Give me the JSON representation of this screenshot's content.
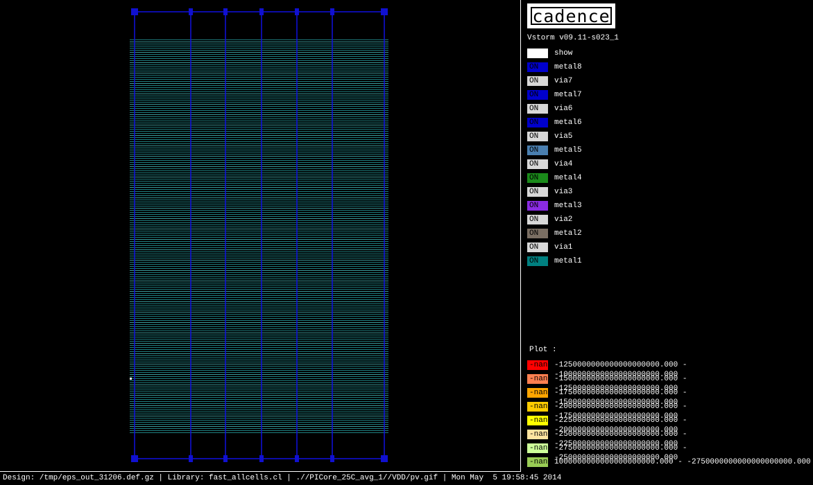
{
  "logo": "cadence",
  "version": "Vstorm v09.11-s023_1",
  "layers": [
    {
      "name": "show",
      "color": "#ffffff"
    },
    {
      "name": "metal8",
      "state": "ON",
      "color": "#0000cc"
    },
    {
      "name": "via7",
      "state": "ON",
      "color": "#d8d8d8"
    },
    {
      "name": "metal7",
      "state": "ON",
      "color": "#0000cc"
    },
    {
      "name": "via6",
      "state": "ON",
      "color": "#d8d8d8"
    },
    {
      "name": "metal6",
      "state": "ON",
      "color": "#0000cc"
    },
    {
      "name": "via5",
      "state": "ON",
      "color": "#d8d8d8"
    },
    {
      "name": "metal5",
      "state": "ON",
      "color": "#4a7fb0"
    },
    {
      "name": "via4",
      "state": "ON",
      "color": "#d8d8d8"
    },
    {
      "name": "metal4",
      "state": "ON",
      "color": "#1a8a1a"
    },
    {
      "name": "via3",
      "state": "ON",
      "color": "#d8d8d8"
    },
    {
      "name": "metal3",
      "state": "ON",
      "color": "#8a2be2"
    },
    {
      "name": "via2",
      "state": "ON",
      "color": "#d8d8d8"
    },
    {
      "name": "metal2",
      "state": "ON",
      "color": "#7a6e62"
    },
    {
      "name": "via1",
      "state": "ON",
      "color": "#d8d8d8"
    },
    {
      "name": "metal1",
      "state": "ON",
      "color": "#008080"
    }
  ],
  "plot": {
    "title": "Plot :",
    "ranges": [
      {
        "swatch": "-nan",
        "color": "#ff0000",
        "range": "-1250000000000000000000.000 - -1000000000000000000000.000"
      },
      {
        "swatch": "-nan",
        "color": "#ff7f50",
        "range": "-1500000000000000000000.000 - -1250000000000000000000.000"
      },
      {
        "swatch": "-nan",
        "color": "#ffa500",
        "range": "-1750000000000000000000.000 - -1500000000000000000000.000"
      },
      {
        "swatch": "-nan",
        "color": "#ffcc00",
        "range": "-2000000000000000000000.000 - -1750000000000000000000.000"
      },
      {
        "swatch": "-nan",
        "color": "#ffff00",
        "range": "-2250000000000000000000.000 - -2000000000000000000000.000"
      },
      {
        "swatch": "-nan",
        "color": "#ffe4a0",
        "range": "-2500000000000000000000.000 - -2250000000000000000000.000"
      },
      {
        "swatch": "-nan",
        "color": "#ccff99",
        "range": "-2750000000000000000000.000 - -2500000000000000000000.000"
      },
      {
        "swatch": "-nan",
        "color": "#99cc55",
        "range": "1000000000000000000000.000 - -2750000000000000000000.000"
      }
    ]
  },
  "status": "Design: /tmp/eps_out_31206.def.gz | Library: fast_allcells.cl | .//PICore_25C_avg_1//VDD/pv.gif | Mon May  5 19:58:45 2014"
}
